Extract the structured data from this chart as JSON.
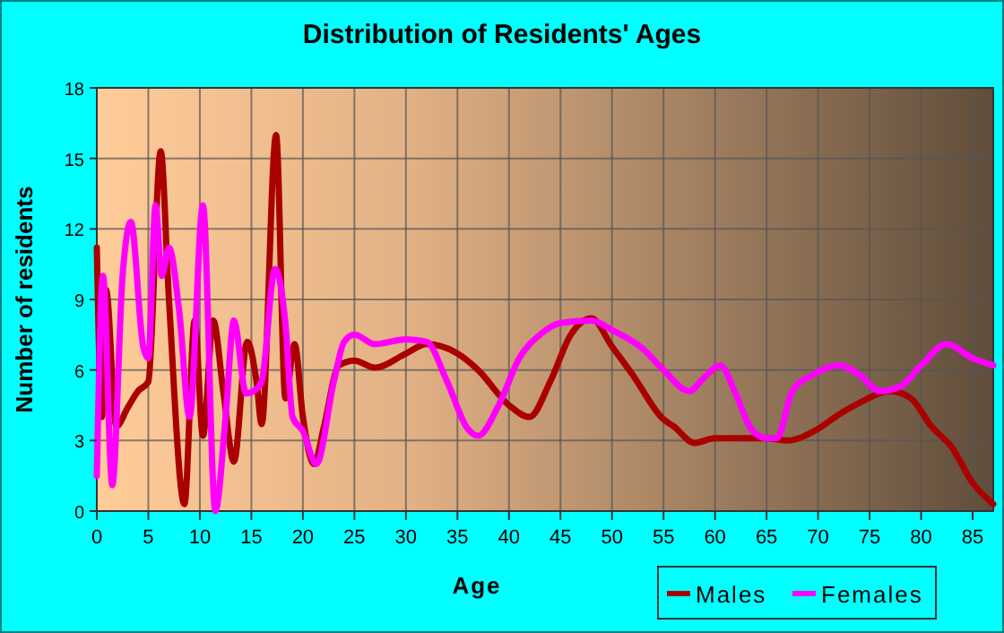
{
  "chart_data": {
    "type": "line",
    "title": "Distribution of Residents' Ages",
    "xlabel": "Age",
    "ylabel": "Number of residents",
    "xlim": [
      0,
      87
    ],
    "ylim": [
      0,
      18
    ],
    "xticks": [
      0,
      5,
      10,
      15,
      20,
      25,
      30,
      35,
      40,
      45,
      50,
      55,
      60,
      65,
      70,
      75,
      80,
      85
    ],
    "yticks": [
      0,
      3,
      6,
      9,
      12,
      15,
      18
    ],
    "grid": true,
    "legend": "bottom right",
    "line_style": "solid",
    "marker": "none",
    "series": [
      {
        "name": "Males",
        "color": "#aa0000",
        "x": [
          0,
          0.5,
          0.9,
          1.9,
          3,
          4,
          5,
          6.2,
          7,
          8.5,
          9.5,
          10.3,
          11.3,
          12.3,
          13.3,
          14.6,
          15.5,
          16,
          17.4,
          18.3,
          19.2,
          20,
          21.1,
          22,
          23.5,
          25,
          27,
          30,
          32,
          35,
          37,
          40,
          42,
          44,
          46,
          48,
          50,
          52,
          55,
          56,
          58,
          60,
          62,
          65,
          67,
          70,
          72,
          74,
          77,
          79,
          81,
          83,
          85,
          87
        ],
        "values": [
          11.2,
          4,
          9.4,
          3.6,
          4.4,
          5.1,
          5.5,
          15.3,
          9,
          0.3,
          8.1,
          3.2,
          8.1,
          5,
          2.1,
          7.2,
          5.5,
          3.7,
          16,
          4.8,
          7.1,
          4,
          2,
          3.5,
          6.2,
          6.4,
          6.1,
          6.7,
          7.1,
          6.7,
          6,
          4.5,
          4,
          5.5,
          7.5,
          8.2,
          7,
          5.8,
          3.9,
          3.6,
          2.9,
          3.1,
          3.1,
          3.1,
          3,
          3.5,
          4.1,
          4.6,
          5.1,
          4.8,
          3.6,
          2.7,
          1.2,
          0.3
        ]
      },
      {
        "name": "Females",
        "color": "#ff00ff",
        "x": [
          0,
          0.6,
          1.5,
          2.5,
          3.3,
          4.5,
          5,
          5.7,
          6.3,
          7,
          8,
          9,
          10.3,
          11.5,
          12.5,
          13.3,
          14.5,
          15.5,
          16,
          17.3,
          18.3,
          19,
          20,
          21.3,
          23,
          24,
          25,
          27,
          30,
          32,
          34,
          36,
          37,
          39,
          41,
          43,
          45,
          48,
          50,
          53,
          55,
          57.5,
          59,
          60.5,
          62,
          63.5,
          65,
          66,
          67.5,
          69.5,
          72,
          74,
          76,
          78,
          80,
          82.5,
          85,
          87
        ],
        "values": [
          1.5,
          10,
          1.1,
          10,
          12.3,
          7,
          6.5,
          13,
          10,
          11.2,
          8.5,
          4,
          13,
          0,
          4,
          8.1,
          5,
          5.2,
          5.5,
          10.3,
          8,
          4,
          3.4,
          2,
          5.5,
          7.2,
          7.5,
          7.1,
          7.3,
          7.2,
          5.5,
          3.5,
          3.2,
          4.5,
          6.5,
          7.5,
          8,
          8.1,
          7.7,
          6.9,
          6,
          5.1,
          5.7,
          6.2,
          5,
          3.5,
          3.1,
          3.1,
          5.1,
          5.8,
          6.2,
          5.8,
          5.1,
          5.3,
          6.2,
          7.1,
          6.5,
          6.2
        ]
      }
    ]
  }
}
